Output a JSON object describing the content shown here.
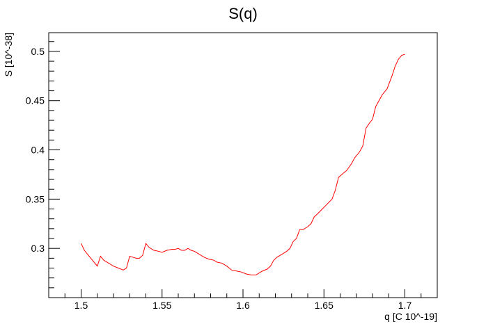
{
  "chart_data": {
    "type": "line",
    "title": "S(q)",
    "xlabel": "q [C 10^-19]",
    "ylabel": "S [10^-38]",
    "xlim": [
      1.48,
      1.72
    ],
    "ylim": [
      0.25,
      0.519
    ],
    "x_ticks": [
      1.5,
      1.55,
      1.6,
      1.65,
      1.7
    ],
    "x_tick_labels": [
      "1.5",
      "1.55",
      "1.6",
      "1.65",
      "1.7"
    ],
    "y_ticks": [
      0.3,
      0.35,
      0.4,
      0.45,
      0.5
    ],
    "y_tick_labels": [
      "0.3",
      "0.35",
      "0.4",
      "0.45",
      "0.5"
    ],
    "grid": false,
    "series": [
      {
        "color": "#ff0000",
        "points": [
          [
            1.5,
            0.305
          ],
          [
            1.502,
            0.298
          ],
          [
            1.505,
            0.292
          ],
          [
            1.508,
            0.286
          ],
          [
            1.51,
            0.282
          ],
          [
            1.512,
            0.292
          ],
          [
            1.514,
            0.288
          ],
          [
            1.517,
            0.285
          ],
          [
            1.52,
            0.282
          ],
          [
            1.523,
            0.28
          ],
          [
            1.526,
            0.278
          ],
          [
            1.528,
            0.28
          ],
          [
            1.53,
            0.292
          ],
          [
            1.532,
            0.291
          ],
          [
            1.534,
            0.29
          ],
          [
            1.536,
            0.29
          ],
          [
            1.538,
            0.293
          ],
          [
            1.54,
            0.305
          ],
          [
            1.542,
            0.301
          ],
          [
            1.545,
            0.298
          ],
          [
            1.548,
            0.297
          ],
          [
            1.55,
            0.296
          ],
          [
            1.553,
            0.298
          ],
          [
            1.556,
            0.299
          ],
          [
            1.558,
            0.299
          ],
          [
            1.56,
            0.3
          ],
          [
            1.562,
            0.298
          ],
          [
            1.564,
            0.298
          ],
          [
            1.566,
            0.3
          ],
          [
            1.568,
            0.298
          ],
          [
            1.57,
            0.297
          ],
          [
            1.573,
            0.294
          ],
          [
            1.576,
            0.291
          ],
          [
            1.579,
            0.289
          ],
          [
            1.582,
            0.288
          ],
          [
            1.584,
            0.286
          ],
          [
            1.587,
            0.285
          ],
          [
            1.59,
            0.282
          ],
          [
            1.593,
            0.278
          ],
          [
            1.596,
            0.277
          ],
          [
            1.599,
            0.276
          ],
          [
            1.602,
            0.274
          ],
          [
            1.605,
            0.273
          ],
          [
            1.608,
            0.273
          ],
          [
            1.61,
            0.275
          ],
          [
            1.612,
            0.277
          ],
          [
            1.615,
            0.279
          ],
          [
            1.617,
            0.282
          ],
          [
            1.619,
            0.288
          ],
          [
            1.621,
            0.291
          ],
          [
            1.624,
            0.294
          ],
          [
            1.627,
            0.297
          ],
          [
            1.629,
            0.3
          ],
          [
            1.631,
            0.307
          ],
          [
            1.633,
            0.31
          ],
          [
            1.635,
            0.319
          ],
          [
            1.637,
            0.319
          ],
          [
            1.64,
            0.322
          ],
          [
            1.642,
            0.325
          ],
          [
            1.644,
            0.332
          ],
          [
            1.646,
            0.335
          ],
          [
            1.649,
            0.34
          ],
          [
            1.652,
            0.345
          ],
          [
            1.655,
            0.35
          ],
          [
            1.657,
            0.359
          ],
          [
            1.659,
            0.372
          ],
          [
            1.661,
            0.375
          ],
          [
            1.664,
            0.379
          ],
          [
            1.667,
            0.386
          ],
          [
            1.669,
            0.392
          ],
          [
            1.672,
            0.398
          ],
          [
            1.674,
            0.404
          ],
          [
            1.676,
            0.422
          ],
          [
            1.678,
            0.427
          ],
          [
            1.68,
            0.431
          ],
          [
            1.682,
            0.444
          ],
          [
            1.684,
            0.45
          ],
          [
            1.686,
            0.456
          ],
          [
            1.689,
            0.462
          ],
          [
            1.692,
            0.475
          ],
          [
            1.694,
            0.485
          ],
          [
            1.696,
            0.492
          ],
          [
            1.698,
            0.496
          ],
          [
            1.7,
            0.497
          ]
        ]
      }
    ]
  }
}
